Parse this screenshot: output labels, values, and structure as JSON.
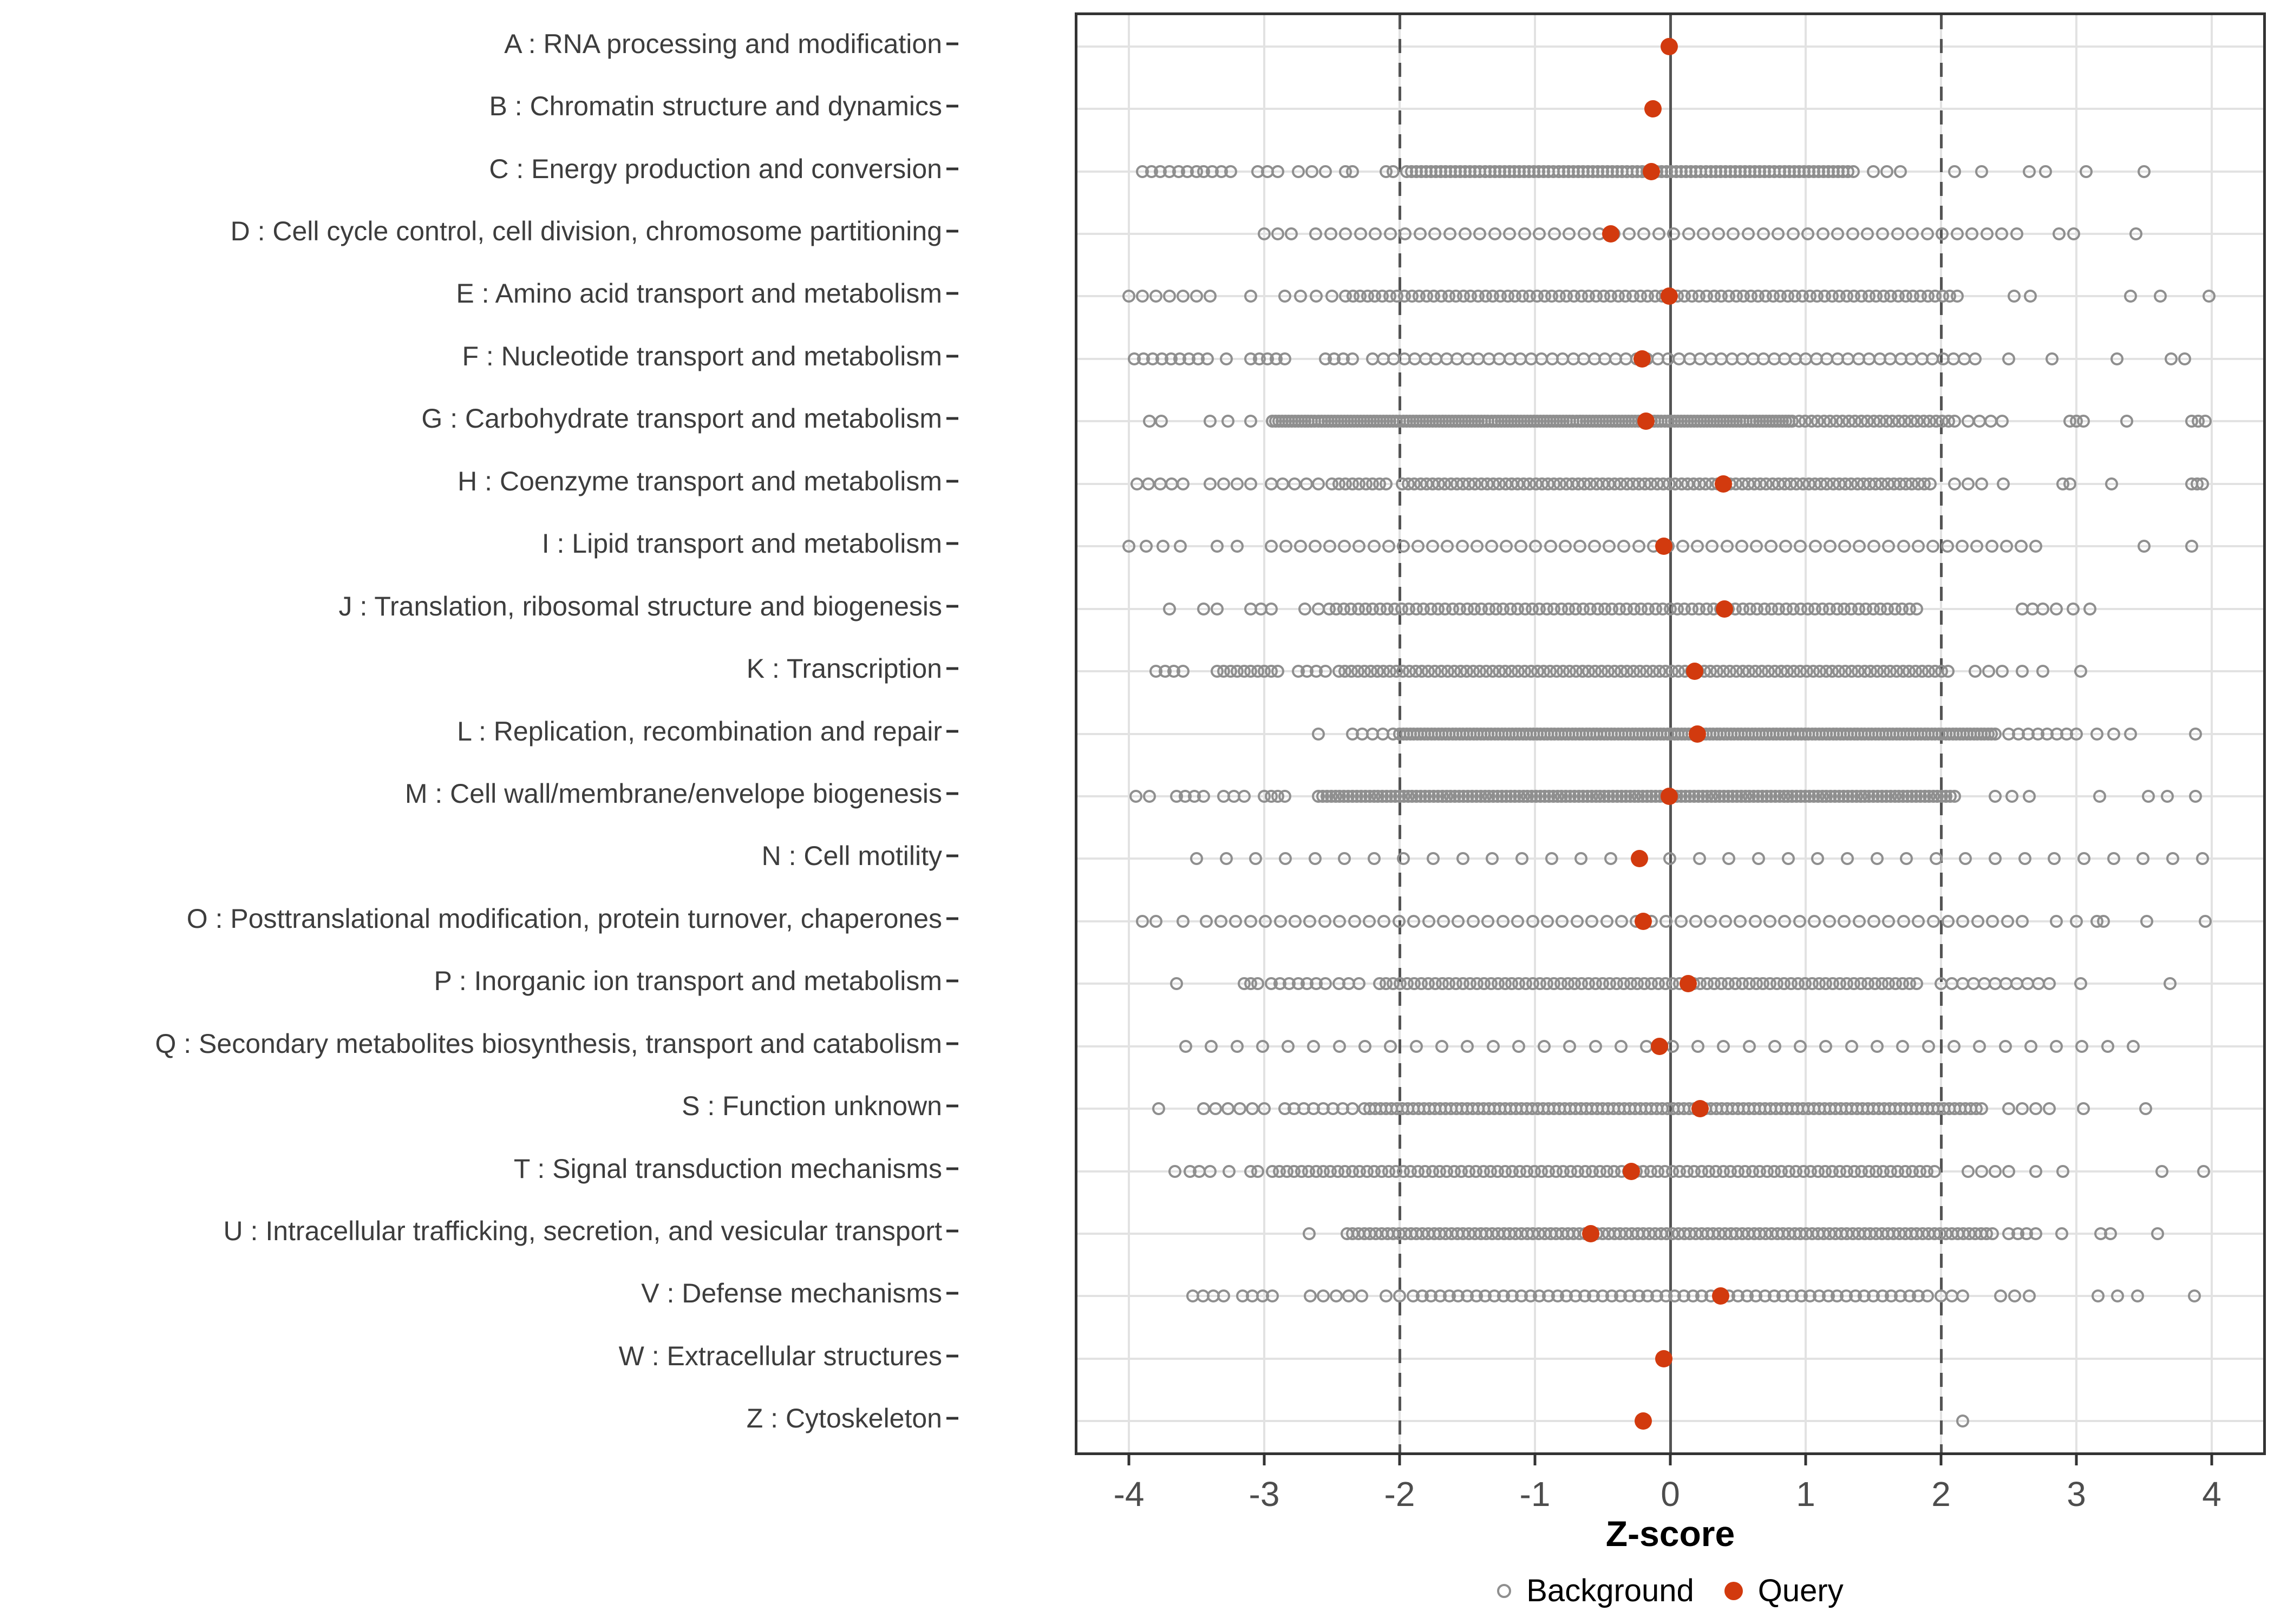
{
  "chart_data": {
    "type": "scatter",
    "title": "",
    "xlabel": "Z-score",
    "ylabel": "",
    "xlim": [
      -4.38,
      4.38
    ],
    "x_ticks": [
      -4,
      -3,
      -2,
      -1,
      0,
      1,
      2,
      3,
      4
    ],
    "grid": "on",
    "reference_lines": {
      "zero": 0,
      "dashed": [
        -2,
        2
      ]
    },
    "legend_position": "bottom",
    "legend": [
      {
        "label": "Background",
        "marker": "open-circle",
        "color": "#8f8f8f"
      },
      {
        "label": "Query",
        "marker": "filled-circle",
        "color": "#d23a0e"
      }
    ],
    "series_note": "background values encoded as segments [from,to,count] of evenly spaced points read from the strip plot",
    "categories": [
      {
        "code": "A",
        "label": "A : RNA processing and modification",
        "query": -0.01,
        "background": []
      },
      {
        "code": "B",
        "label": "B : Chromatin structure and dynamics",
        "query": -0.13,
        "background": []
      },
      {
        "code": "C",
        "label": "C : Energy production and conversion",
        "query": -0.14,
        "background": [
          [
            -3.9,
            -3.5,
            7
          ],
          [
            -3.45,
            -3.25,
            4
          ],
          [
            -3.05,
            -2.9,
            3
          ],
          [
            -2.75,
            -2.55,
            3
          ],
          [
            -2.4,
            -2.35,
            2
          ],
          [
            -2.1,
            -2.05,
            2
          ],
          [
            -1.95,
            1.35,
            92
          ],
          [
            1.5,
            1.7,
            3
          ],
          [
            2.1,
            2.3,
            2
          ],
          [
            2.65,
            2.77,
            2
          ],
          [
            3.07,
            3.07,
            1
          ],
          [
            3.5,
            3.5,
            1
          ]
        ]
      },
      {
        "code": "D",
        "label": "D : Cell cycle control, cell division, chromosome partitioning",
        "query": -0.44,
        "background": [
          [
            -3.0,
            -2.8,
            3
          ],
          [
            -2.62,
            2.56,
            48
          ],
          [
            2.87,
            2.98,
            2
          ],
          [
            3.44,
            3.44,
            1
          ]
        ]
      },
      {
        "code": "E",
        "label": "E : Amino acid transport and metabolism",
        "query": -0.01,
        "background": [
          [
            -4.0,
            -3.6,
            5
          ],
          [
            -3.5,
            -3.4,
            2
          ],
          [
            -3.1,
            -3.1,
            1
          ],
          [
            -2.85,
            -2.5,
            4
          ],
          [
            -2.4,
            2.12,
            84
          ],
          [
            2.54,
            2.66,
            2
          ],
          [
            3.4,
            3.4,
            1
          ],
          [
            3.62,
            3.62,
            1
          ],
          [
            3.98,
            3.98,
            1
          ]
        ]
      },
      {
        "code": "F",
        "label": "F : Nucleotide transport and metabolism",
        "query": -0.21,
        "background": [
          [
            -3.96,
            -3.42,
            9
          ],
          [
            -3.28,
            -3.28,
            1
          ],
          [
            -3.1,
            -2.85,
            5
          ],
          [
            -2.55,
            -2.35,
            4
          ],
          [
            -2.2,
            2.25,
            58
          ],
          [
            2.5,
            2.5,
            1
          ],
          [
            2.82,
            2.82,
            1
          ],
          [
            3.3,
            3.3,
            1
          ],
          [
            3.7,
            3.8,
            2
          ]
        ]
      },
      {
        "code": "G",
        "label": "G : Carbohydrate transport and metabolism",
        "query": -0.18,
        "background": [
          [
            -3.85,
            -3.76,
            2
          ],
          [
            -3.4,
            -3.27,
            2
          ],
          [
            -3.1,
            -3.1,
            1
          ],
          [
            -2.94,
            0.9,
            160
          ],
          [
            0.95,
            2.1,
            26
          ],
          [
            2.2,
            2.45,
            4
          ],
          [
            2.95,
            3.05,
            3
          ],
          [
            3.37,
            3.37,
            1
          ],
          [
            3.85,
            3.95,
            3
          ]
        ]
      },
      {
        "code": "H",
        "label": "H : Coenzyme transport and metabolism",
        "query": 0.39,
        "background": [
          [
            -3.94,
            -3.6,
            5
          ],
          [
            -3.4,
            -3.1,
            4
          ],
          [
            -2.95,
            -2.6,
            5
          ],
          [
            -2.5,
            -2.1,
            9
          ],
          [
            -1.98,
            1.92,
            88
          ],
          [
            2.1,
            2.3,
            3
          ],
          [
            2.46,
            2.46,
            1
          ],
          [
            2.9,
            2.95,
            2
          ],
          [
            3.26,
            3.26,
            1
          ],
          [
            3.85,
            3.93,
            3
          ]
        ]
      },
      {
        "code": "I",
        "label": "I : Lipid transport and metabolism",
        "query": -0.05,
        "background": [
          [
            -4.0,
            -3.62,
            4
          ],
          [
            -3.35,
            -3.2,
            2
          ],
          [
            -2.95,
            2.7,
            53
          ],
          [
            3.5,
            3.5,
            1
          ],
          [
            3.85,
            3.85,
            1
          ]
        ]
      },
      {
        "code": "J",
        "label": "J : Translation, ribosomal structure and biogenesis",
        "query": 0.4,
        "background": [
          [
            -3.7,
            -3.7,
            1
          ],
          [
            -3.45,
            -3.35,
            2
          ],
          [
            -3.1,
            -2.95,
            3
          ],
          [
            -2.7,
            -2.6,
            2
          ],
          [
            -2.52,
            1.82,
            82
          ],
          [
            2.6,
            2.75,
            3
          ],
          [
            2.85,
            3.1,
            3
          ]
        ]
      },
      {
        "code": "K",
        "label": "K : Transcription",
        "query": 0.18,
        "background": [
          [
            -3.8,
            -3.6,
            4
          ],
          [
            -3.35,
            -2.9,
            10
          ],
          [
            -2.75,
            -2.55,
            4
          ],
          [
            -2.45,
            2.05,
            96
          ],
          [
            2.25,
            2.45,
            3
          ],
          [
            2.6,
            2.75,
            2
          ],
          [
            3.03,
            3.03,
            1
          ]
        ]
      },
      {
        "code": "L",
        "label": "L : Replication, recombination and repair",
        "query": 0.2,
        "background": [
          [
            -2.6,
            -2.6,
            1
          ],
          [
            -2.35,
            -2.05,
            5
          ],
          [
            -2.0,
            2.4,
            170
          ],
          [
            2.5,
            3.0,
            8
          ],
          [
            3.15,
            3.4,
            3
          ],
          [
            3.88,
            3.88,
            1
          ]
        ]
      },
      {
        "code": "M",
        "label": "M : Cell wall/membrane/envelope biogenesis",
        "query": -0.01,
        "background": [
          [
            -3.95,
            -3.85,
            2
          ],
          [
            -3.65,
            -3.45,
            4
          ],
          [
            -3.3,
            -3.15,
            3
          ],
          [
            -3.0,
            -2.85,
            4
          ],
          [
            -2.6,
            2.1,
            150
          ],
          [
            2.4,
            2.65,
            3
          ],
          [
            3.17,
            3.17,
            1
          ],
          [
            3.53,
            3.67,
            2
          ],
          [
            3.88,
            3.88,
            1
          ]
        ]
      },
      {
        "code": "N",
        "label": "N : Cell motility",
        "query": -0.23,
        "background": [
          [
            -3.5,
            3.93,
            35
          ]
        ]
      },
      {
        "code": "O",
        "label": "O : Posttranslational modification, protein turnover, chaperones",
        "query": -0.2,
        "background": [
          [
            -3.9,
            -3.8,
            2
          ],
          [
            -3.6,
            -3.6,
            1
          ],
          [
            -3.43,
            2.6,
            56
          ],
          [
            2.85,
            3.0,
            2
          ],
          [
            3.15,
            3.2,
            2
          ],
          [
            3.52,
            3.52,
            1
          ],
          [
            3.95,
            3.95,
            1
          ]
        ]
      },
      {
        "code": "P",
        "label": "P : Inorganic ion transport and metabolism",
        "query": 0.13,
        "background": [
          [
            -3.65,
            -3.65,
            1
          ],
          [
            -3.15,
            -3.05,
            3
          ],
          [
            -2.95,
            -2.55,
            7
          ],
          [
            -2.45,
            -2.3,
            3
          ],
          [
            -2.15,
            1.82,
            78
          ],
          [
            2.0,
            2.8,
            11
          ],
          [
            3.03,
            3.03,
            1
          ],
          [
            3.69,
            3.69,
            1
          ]
        ]
      },
      {
        "code": "Q",
        "label": "Q : Secondary metabolites biosynthesis, transport and catabolism",
        "query": -0.08,
        "background": [
          [
            -3.58,
            3.42,
            38
          ]
        ]
      },
      {
        "code": "S",
        "label": "S : Function unknown",
        "query": 0.22,
        "background": [
          [
            -3.78,
            -3.78,
            1
          ],
          [
            -3.45,
            -3.0,
            6
          ],
          [
            -2.85,
            -2.35,
            8
          ],
          [
            -2.26,
            2.3,
            115
          ],
          [
            2.5,
            2.8,
            4
          ],
          [
            3.05,
            3.05,
            1
          ],
          [
            3.51,
            3.51,
            1
          ]
        ]
      },
      {
        "code": "T",
        "label": "T : Signal transduction mechanisms",
        "query": -0.29,
        "background": [
          [
            -3.66,
            -3.55,
            2
          ],
          [
            -3.48,
            -3.4,
            2
          ],
          [
            -3.26,
            -3.26,
            1
          ],
          [
            -3.1,
            -3.05,
            2
          ],
          [
            -2.94,
            1.95,
            92
          ],
          [
            2.2,
            2.5,
            4
          ],
          [
            2.7,
            2.9,
            2
          ],
          [
            3.63,
            3.63,
            1
          ],
          [
            3.94,
            3.94,
            1
          ]
        ]
      },
      {
        "code": "U",
        "label": "U : Intracellular trafficking, secretion, and vesicular transport",
        "query": -0.59,
        "background": [
          [
            -2.67,
            -2.67,
            1
          ],
          [
            -2.39,
            2.38,
            112
          ],
          [
            2.5,
            2.7,
            4
          ],
          [
            2.89,
            2.89,
            1
          ],
          [
            3.18,
            3.25,
            2
          ],
          [
            3.6,
            3.6,
            1
          ]
        ]
      },
      {
        "code": "V",
        "label": "V : Defense mechanisms",
        "query": 0.37,
        "background": [
          [
            -3.53,
            -3.3,
            4
          ],
          [
            -3.16,
            -2.94,
            4
          ],
          [
            -2.66,
            -2.28,
            5
          ],
          [
            -2.1,
            -2.0,
            2
          ],
          [
            -1.9,
            1.9,
            58
          ],
          [
            2.0,
            2.16,
            3
          ],
          [
            2.44,
            2.65,
            3
          ],
          [
            3.16,
            3.45,
            3
          ],
          [
            3.87,
            3.87,
            1
          ]
        ]
      },
      {
        "code": "W",
        "label": "W : Extracellular structures",
        "query": -0.05,
        "background": []
      },
      {
        "code": "Z",
        "label": "Z : Cytoskeleton",
        "query": -0.2,
        "background": [
          [
            2.16,
            2.16,
            1
          ]
        ]
      }
    ]
  },
  "colors": {
    "background_point": "#8f8f8f",
    "query_point": "#d23a0e",
    "grid": "#e2e2e2",
    "reference_line": "#545454",
    "panel_border": "#333333",
    "axis_text": "#4d4d4d",
    "label_text": "#3d3d3d"
  }
}
